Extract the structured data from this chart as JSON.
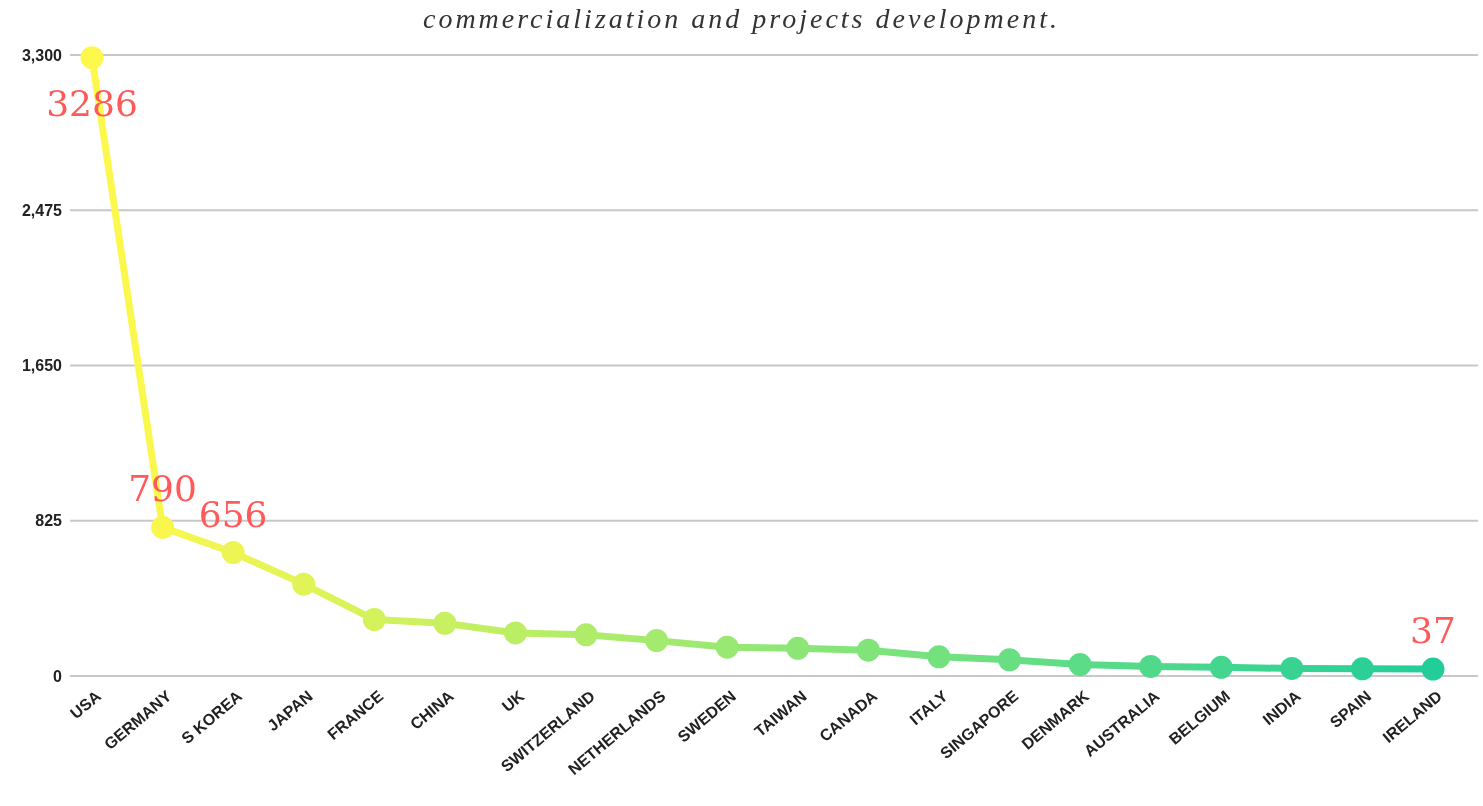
{
  "chart_data": {
    "type": "line",
    "title": "commercialization and projects development.",
    "categories": [
      "USA",
      "GERMANY",
      "S KOREA",
      "JAPAN",
      "FRANCE",
      "CHINA",
      "UK",
      "SWITZERLAND",
      "NETHERLANDS",
      "SWEDEN",
      "TAIWAN",
      "CANADA",
      "ITALY",
      "SINGAPORE",
      "DENMARK",
      "AUSTRALIA",
      "BELGIUM",
      "INDIA",
      "SPAIN",
      "IRELAND"
    ],
    "values": [
      3286,
      790,
      656,
      488,
      300,
      280,
      229,
      219,
      188,
      153,
      147,
      137,
      102,
      86,
      61,
      51,
      46,
      40,
      38,
      37
    ],
    "value_labels": [
      "3286",
      "790",
      "656",
      null,
      null,
      null,
      null,
      null,
      null,
      null,
      null,
      null,
      null,
      null,
      null,
      null,
      null,
      null,
      null,
      "37"
    ],
    "colors": [
      "#fdf84c",
      "#f9f74e",
      "#ecf553",
      "#e1f457",
      "#d4f25c",
      "#c8f061",
      "#bcee65",
      "#b0ec6a",
      "#a4ea6e",
      "#98e873",
      "#8ce677",
      "#80e47b",
      "#74e17f",
      "#68df83",
      "#5cdc87",
      "#50d98b",
      "#44d68f",
      "#38d393",
      "#2cd097",
      "#22cd99"
    ],
    "ylim": [
      0,
      3300
    ],
    "yticks": [
      0,
      {
        "value": 825,
        "label": "825"
      },
      {
        "value": 1650,
        "label": "1,650"
      },
      {
        "value": 2475,
        "label": "2,475"
      },
      {
        "value": 3300,
        "label": "3,300"
      }
    ],
    "grid": "y",
    "marker": "circle",
    "line_style": "solid"
  }
}
